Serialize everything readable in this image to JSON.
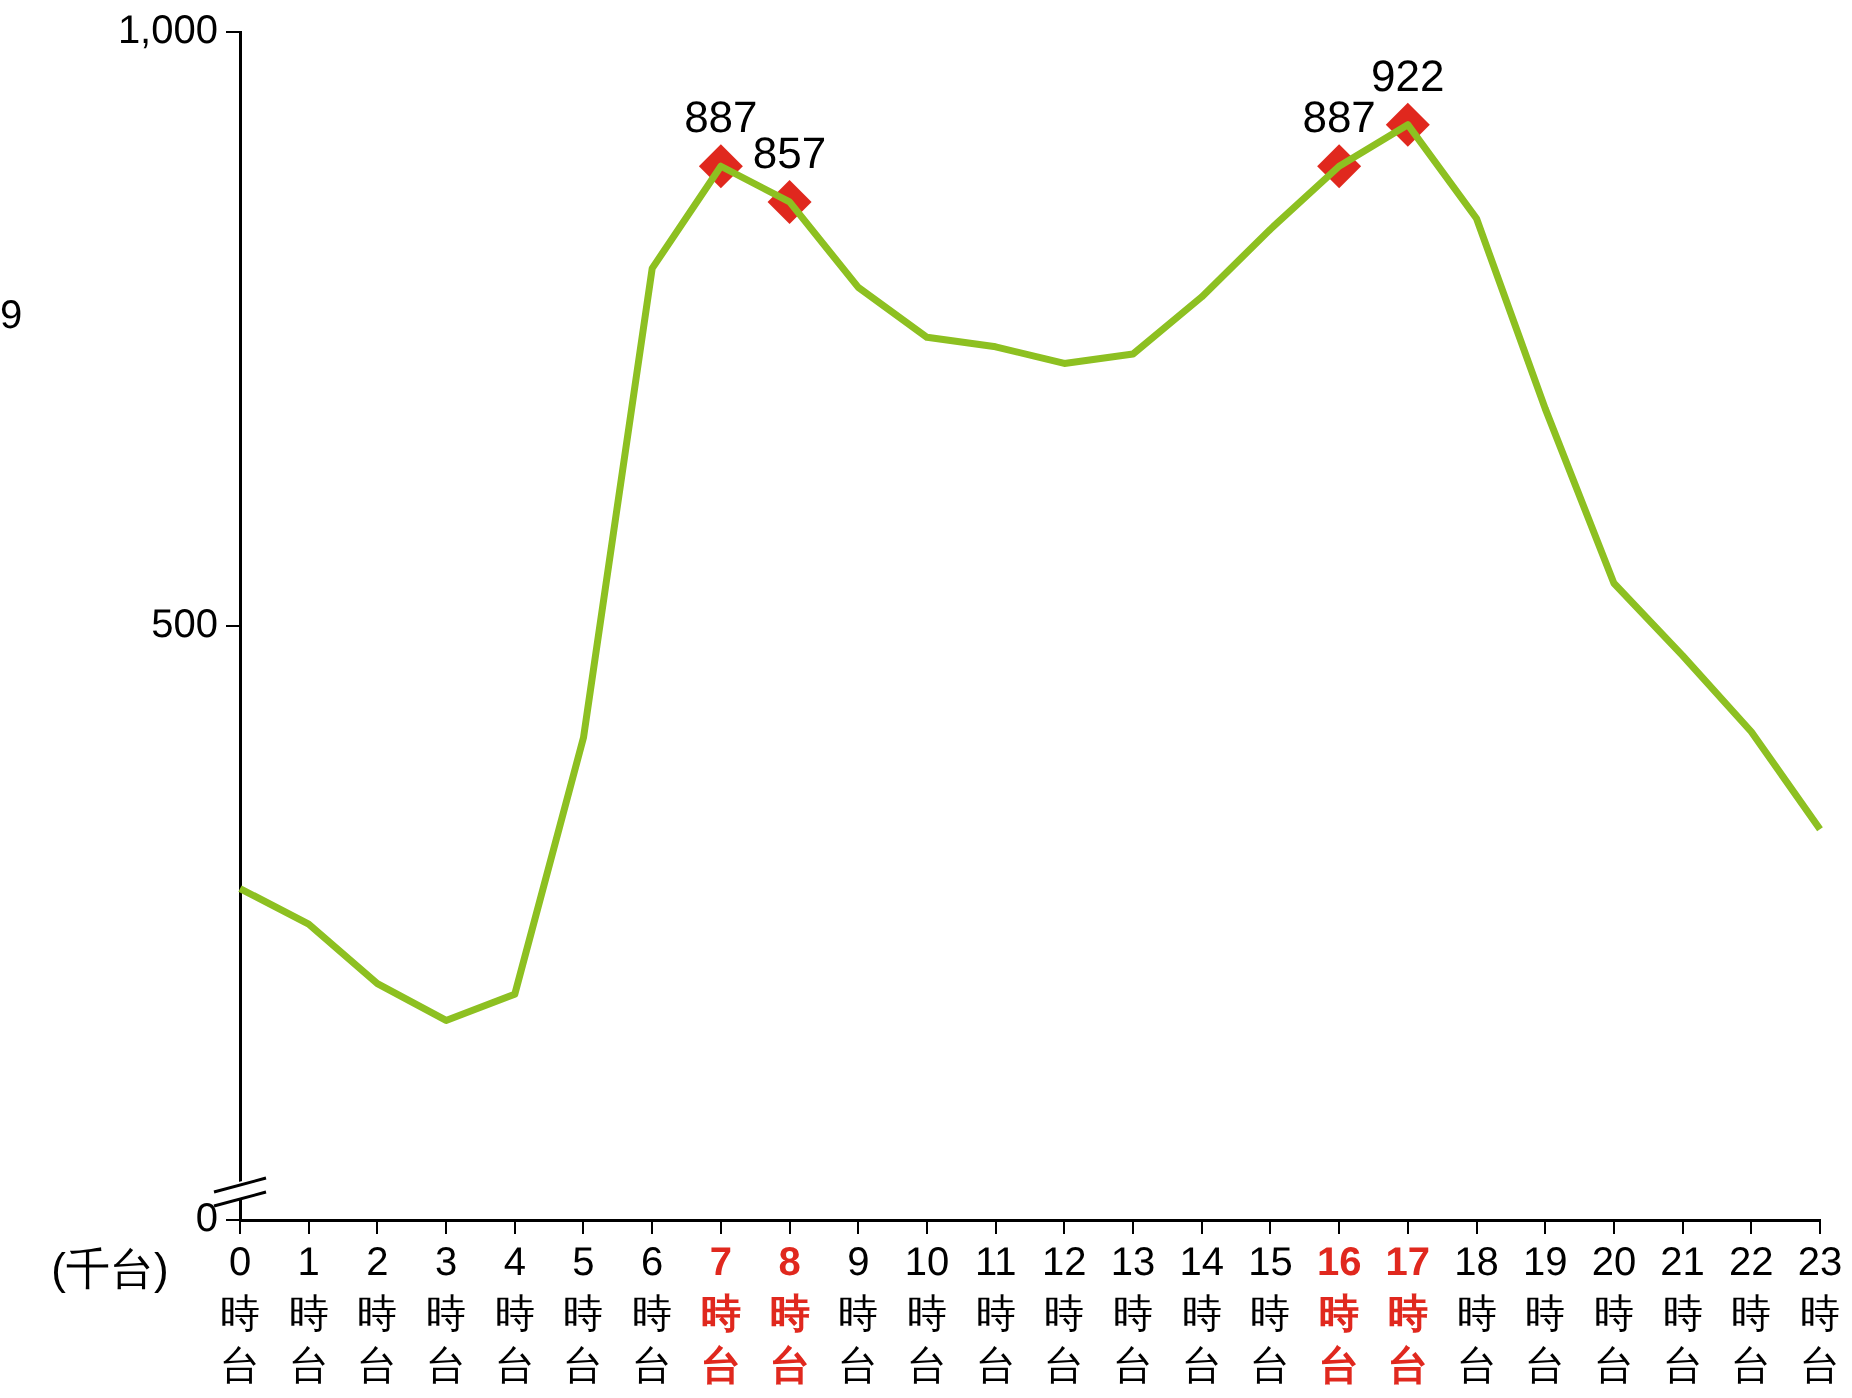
{
  "chart_data": {
    "type": "line",
    "ylabel": "(千台)",
    "annotations": [
      "9"
    ],
    "categories": [
      "0時台",
      "1時台",
      "2時台",
      "3時台",
      "4時台",
      "5時台",
      "6時台",
      "7時台",
      "8時台",
      "9時台",
      "10時台",
      "11時台",
      "12時台",
      "13時台",
      "14時台",
      "15時台",
      "16時台",
      "17時台",
      "18時台",
      "19時台",
      "20時台",
      "21時台",
      "22時台",
      "23時台"
    ],
    "series": [
      {
        "color": "#8dc021",
        "marker": "none",
        "values": [
          279,
          249,
          199,
          168,
          190,
          406,
          801,
          887,
          857,
          785,
          743,
          735,
          721,
          729,
          777,
          834,
          887,
          922,
          843,
          683,
          536,
          475,
          411,
          329
        ]
      },
      {
        "type": "scatter",
        "color": "#e0281e",
        "marker": "diamond",
        "values": [
          null,
          null,
          null,
          null,
          null,
          null,
          null,
          887,
          857,
          null,
          null,
          null,
          null,
          null,
          null,
          null,
          887,
          922,
          null,
          null,
          null,
          null,
          null,
          null
        ],
        "value_labels": [
          null,
          null,
          null,
          null,
          null,
          null,
          null,
          "887",
          "857",
          null,
          null,
          null,
          null,
          null,
          null,
          null,
          "887",
          "922",
          null,
          null,
          null,
          null,
          null,
          null
        ]
      }
    ],
    "ylim": [
      0,
      1000
    ],
    "yticks": [
      0,
      500,
      {
        "value": 1000,
        "label": "1,000"
      }
    ],
    "grid": false,
    "legend": false
  }
}
